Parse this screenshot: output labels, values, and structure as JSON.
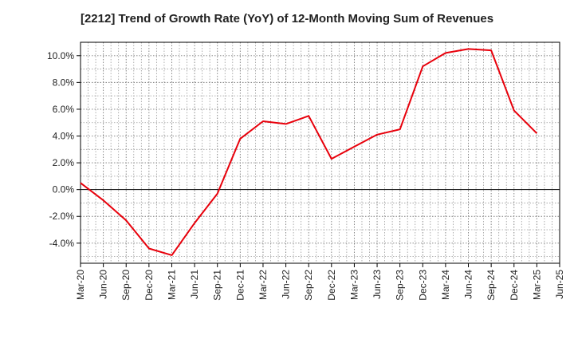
{
  "chart_data": {
    "type": "line",
    "title": "[2212]  Trend of Growth Rate (YoY) of 12-Month Moving Sum of Revenues",
    "xlabel": "",
    "ylabel": "",
    "x_ticks": [
      "Mar-20",
      "Jun-20",
      "Sep-20",
      "Dec-20",
      "Mar-21",
      "Jun-21",
      "Sep-21",
      "Dec-21",
      "Mar-22",
      "Jun-22",
      "Sep-22",
      "Dec-22",
      "Mar-23",
      "Jun-23",
      "Sep-23",
      "Dec-23",
      "Mar-24",
      "Jun-24",
      "Sep-24",
      "Dec-24",
      "Mar-25",
      "Jun-25"
    ],
    "y_ticks": [
      "10.0%",
      "8.0%",
      "6.0%",
      "4.0%",
      "2.0%",
      "0.0%",
      "-2.0%",
      "-4.0%"
    ],
    "y_tick_values": [
      10,
      8,
      6,
      4,
      2,
      0,
      -2,
      -4
    ],
    "ylim": [
      -5.5,
      11.0
    ],
    "grid": true,
    "line_color": "#e8000b",
    "series": [
      {
        "x": [
          "Mar-20",
          "Jun-20",
          "Sep-20",
          "Dec-20",
          "Mar-21",
          "Jun-21",
          "Sep-21",
          "Dec-21",
          "Mar-22",
          "Jun-22",
          "Sep-22",
          "Dec-22",
          "Mar-23",
          "Jun-23",
          "Sep-23",
          "Dec-23",
          "Mar-24",
          "Jun-24",
          "Sep-24",
          "Dec-24",
          "Mar-25"
        ],
        "values": [
          0.5,
          -0.8,
          -2.3,
          -4.4,
          -4.9,
          -2.5,
          -0.3,
          3.8,
          5.1,
          4.9,
          5.5,
          2.3,
          3.2,
          4.1,
          4.5,
          9.2,
          10.2,
          10.5,
          10.4,
          5.9,
          4.2
        ]
      }
    ]
  }
}
